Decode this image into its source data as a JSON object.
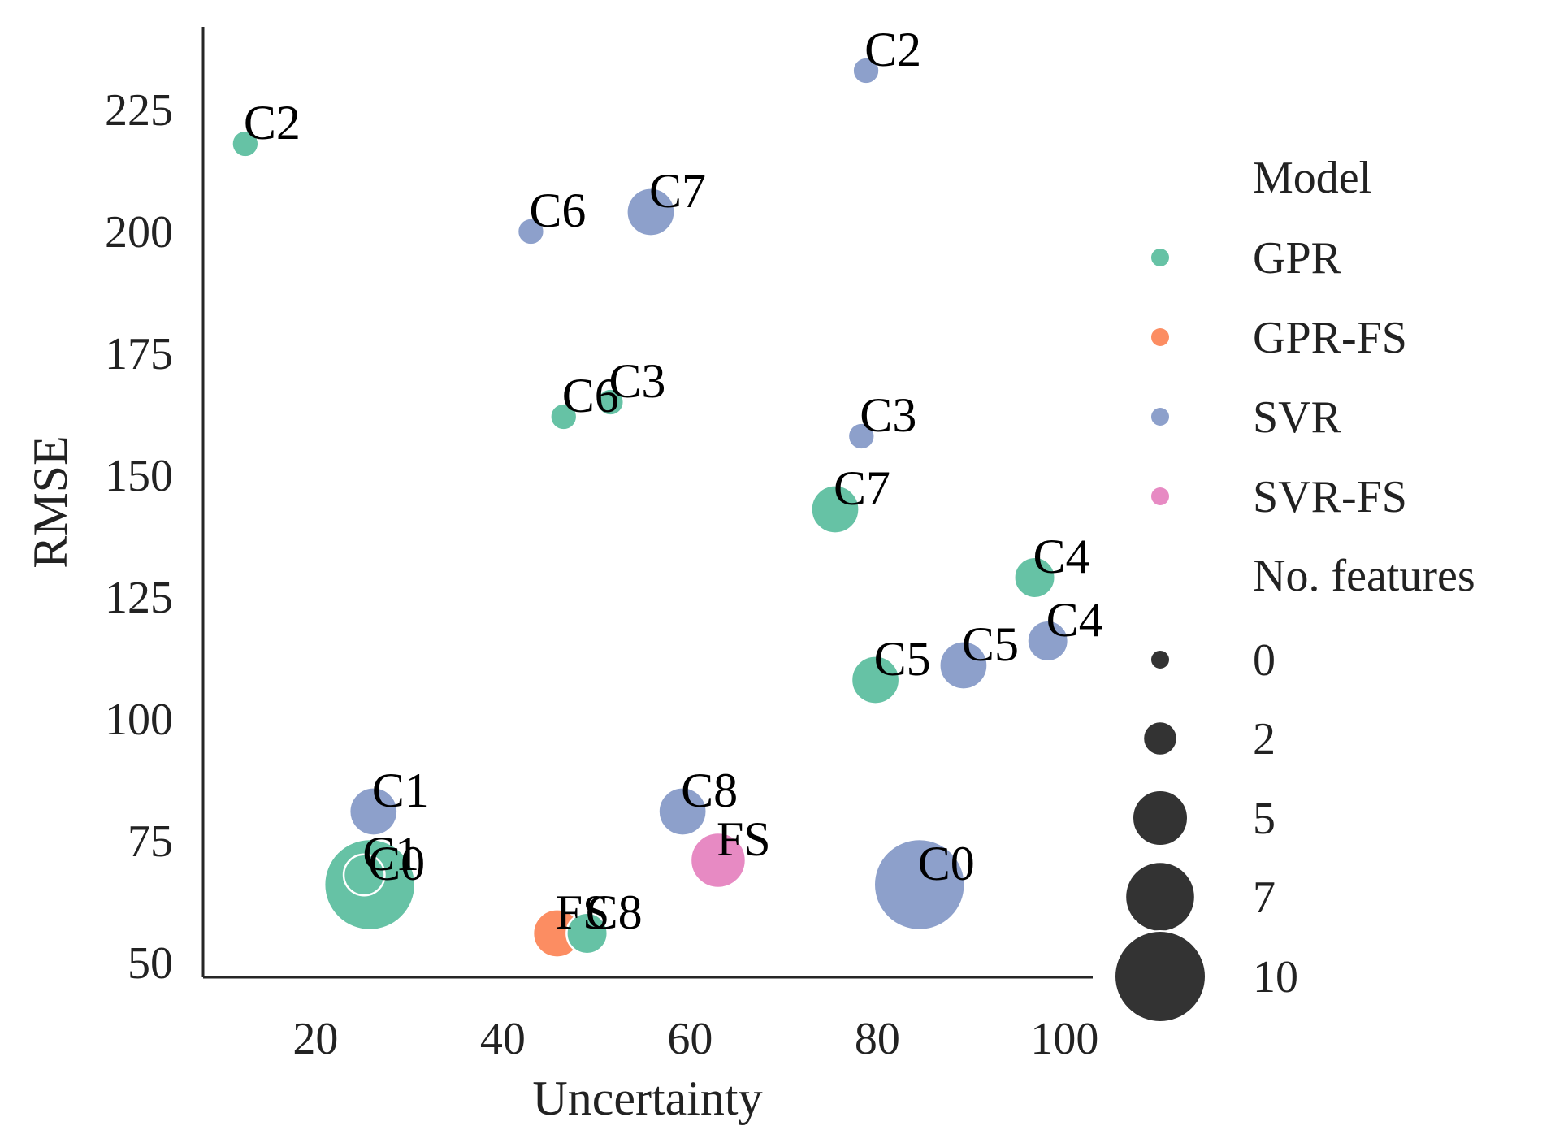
{
  "chart_data": {
    "type": "scatter",
    "xlabel": "Uncertainty",
    "ylabel": "RMSE",
    "xlim": [
      8,
      103
    ],
    "ylim": [
      47,
      242
    ],
    "xticks": [
      20,
      40,
      60,
      80,
      100
    ],
    "yticks": [
      50,
      75,
      100,
      125,
      150,
      175,
      200,
      225
    ],
    "grid": false,
    "legend_position": "right",
    "colors": {
      "GPR": "#66c2a5",
      "GPR-FS": "#fc8d62",
      "SVR": "#8da0cb",
      "SVR-FS": "#e78ac3"
    },
    "points": [
      {
        "x": 12.5,
        "y": 218,
        "model": "GPR",
        "features": 1,
        "label": "C2"
      },
      {
        "x": 25.8,
        "y": 66,
        "model": "GPR",
        "features": 10,
        "label": "C0"
      },
      {
        "x": 25.2,
        "y": 68,
        "model": "GPR",
        "features": 3,
        "label": "C1"
      },
      {
        "x": 46.5,
        "y": 162,
        "model": "GPR",
        "features": 1,
        "label": "C6"
      },
      {
        "x": 51.5,
        "y": 165,
        "model": "GPR",
        "features": 1,
        "label": "C3"
      },
      {
        "x": 75.5,
        "y": 143,
        "model": "GPR",
        "features": 4,
        "label": "C7"
      },
      {
        "x": 79.8,
        "y": 108,
        "model": "GPR",
        "features": 4,
        "label": "C5"
      },
      {
        "x": 96.8,
        "y": 129,
        "model": "GPR",
        "features": 3,
        "label": "C4"
      },
      {
        "x": 49.0,
        "y": 56,
        "model": "GPR",
        "features": 3,
        "label": "C8"
      },
      {
        "x": 45.8,
        "y": 56,
        "model": "GPR-FS",
        "features": 4,
        "label": "FS"
      },
      {
        "x": 26.2,
        "y": 81,
        "model": "SVR",
        "features": 4,
        "label": "C1"
      },
      {
        "x": 84.5,
        "y": 66,
        "model": "SVR",
        "features": 10,
        "label": "C0"
      },
      {
        "x": 78.8,
        "y": 233,
        "model": "SVR",
        "features": 1,
        "label": "C2"
      },
      {
        "x": 43.0,
        "y": 200,
        "model": "SVR",
        "features": 1,
        "label": "C6"
      },
      {
        "x": 55.8,
        "y": 204,
        "model": "SVR",
        "features": 4,
        "label": "C7"
      },
      {
        "x": 78.3,
        "y": 158,
        "model": "SVR",
        "features": 1,
        "label": "C3"
      },
      {
        "x": 89.2,
        "y": 111,
        "model": "SVR",
        "features": 4,
        "label": "C5"
      },
      {
        "x": 98.2,
        "y": 116,
        "model": "SVR",
        "features": 3,
        "label": "C4"
      },
      {
        "x": 59.2,
        "y": 81,
        "model": "SVR",
        "features": 4,
        "label": "C8"
      },
      {
        "x": 63.0,
        "y": 71,
        "model": "SVR-FS",
        "features": 5,
        "label": "FS"
      }
    ],
    "legend": {
      "hue_title": "Model",
      "hue_entries": [
        "GPR",
        "GPR-FS",
        "SVR",
        "SVR-FS"
      ],
      "size_title": "No. features",
      "size_entries": [
        {
          "label": "0",
          "features": 0
        },
        {
          "label": "2",
          "features": 2
        },
        {
          "label": "5",
          "features": 5
        },
        {
          "label": "7",
          "features": 7
        },
        {
          "label": "10",
          "features": 10
        }
      ],
      "size_color": "#333333"
    }
  }
}
